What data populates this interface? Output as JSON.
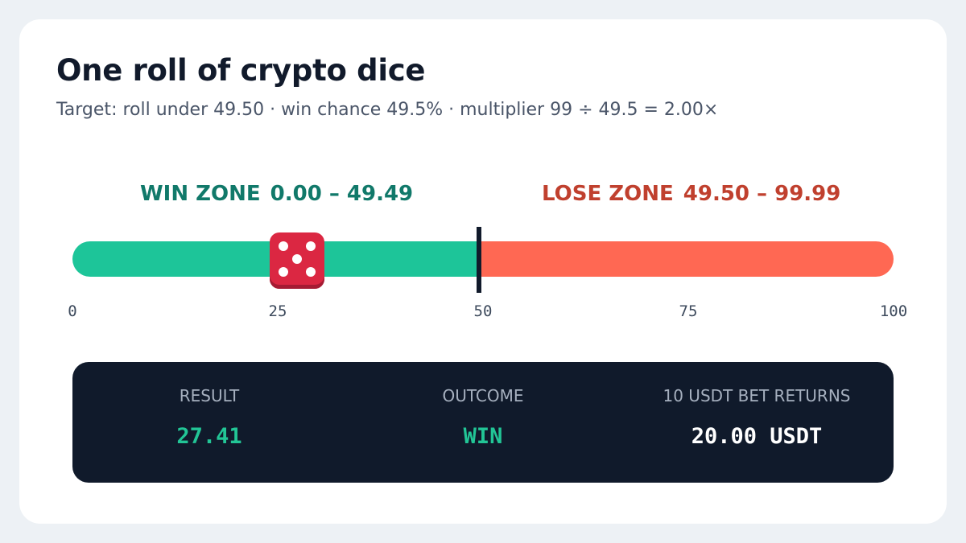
{
  "card": {
    "title": "One roll of crypto dice",
    "subtitle": "Target: roll under 49.50  ·  win chance 49.5%  ·  multiplier 99 ÷ 49.5 = 2.00×"
  },
  "zones": {
    "win": {
      "label": "WIN ZONE",
      "range": "0.00 – 49.49",
      "color": "#1dc599"
    },
    "lose": {
      "label": "LOSE ZONE",
      "range": "49.50 – 99.99",
      "color": "#ff6853"
    }
  },
  "track": {
    "min": 0,
    "max": 100,
    "threshold": 49.5,
    "roll": 27.41,
    "ticks": [
      "0",
      "25",
      "50",
      "75",
      "100"
    ]
  },
  "die": {
    "face": 5,
    "icon": "dice-five-icon",
    "color": "#db2742"
  },
  "result_panel": {
    "result_label": "RESULT",
    "result_value": "27.41",
    "outcome_label": "OUTCOME",
    "outcome_value": "WIN",
    "returns_label": "10 USDT BET RETURNS",
    "returns_value": "20.00 USDT"
  }
}
